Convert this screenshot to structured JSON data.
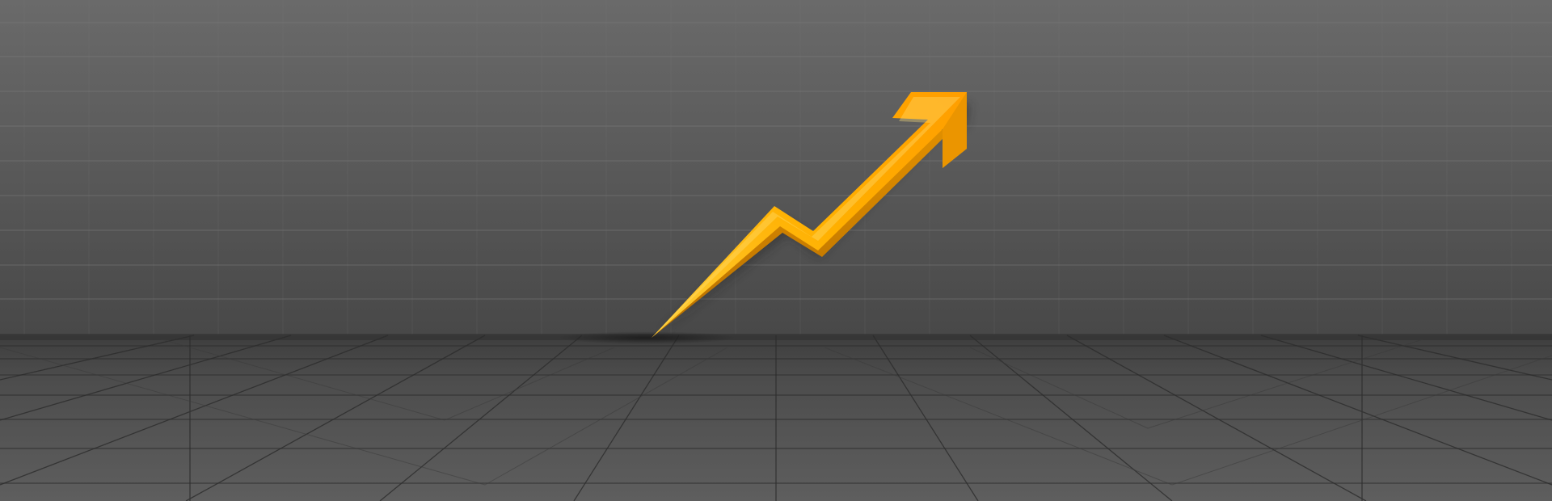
{
  "scene": {
    "subject": "rising-zigzag-arrow",
    "colors": {
      "wall_top": "#6a6a6a",
      "wall_bottom": "#4a4a4a",
      "floor_near": "#5c5c5c",
      "floor_far": "#3f3f3f",
      "grid_line": "#7a7a7a",
      "floor_grid_line": "#2e2e2e",
      "arrow_light": "#ffc21a",
      "arrow_mid": "#ffa800",
      "arrow_dark": "#d98a00",
      "shadow": "#1f1f1f"
    }
  }
}
